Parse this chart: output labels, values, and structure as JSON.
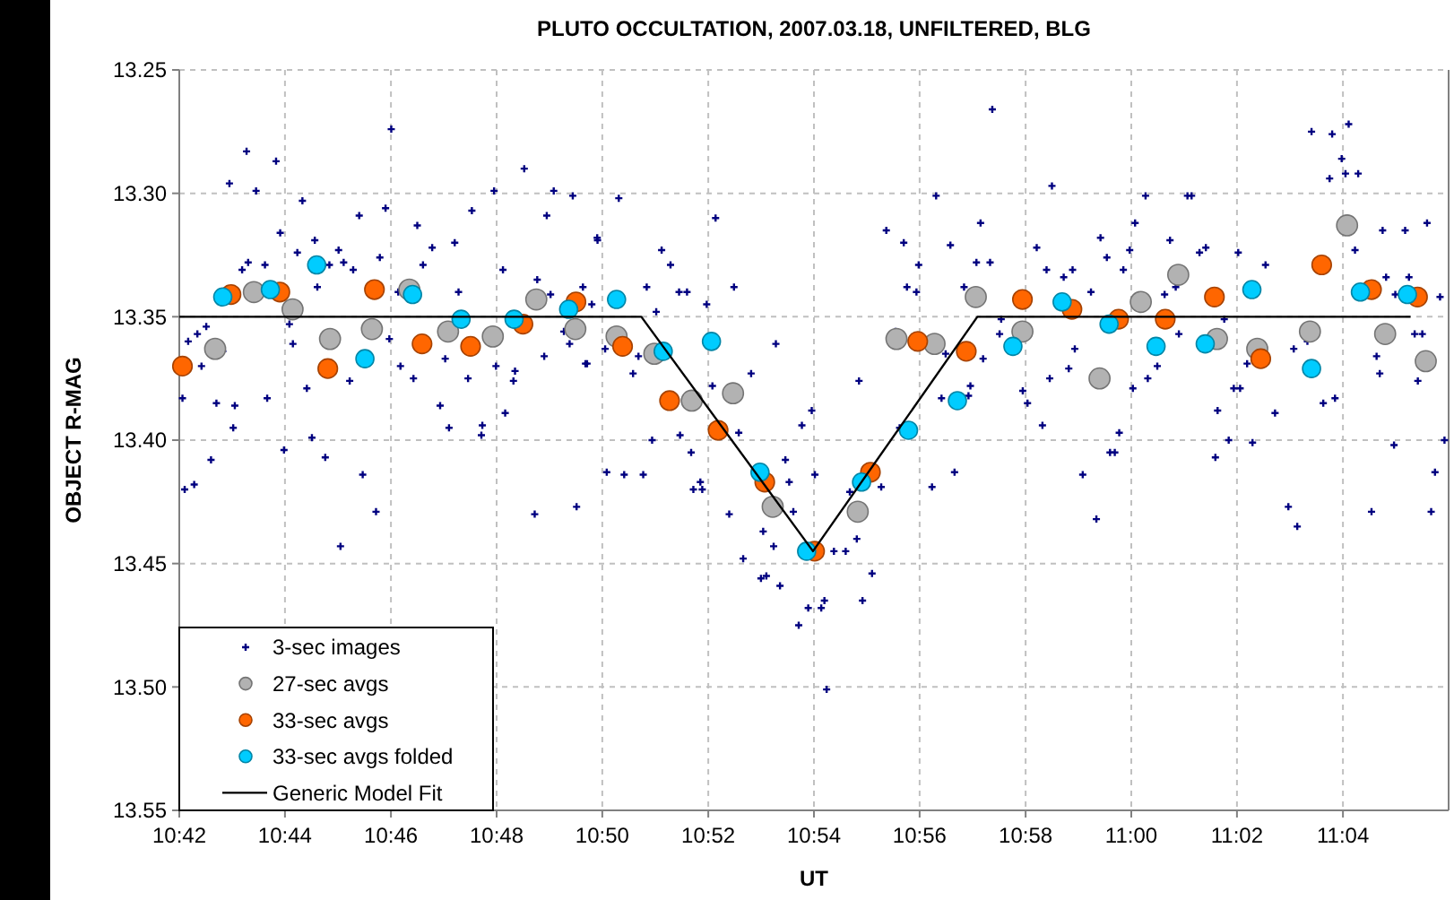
{
  "chart_data": {
    "type": "scatter",
    "title": "PLUTO OCCULTATION, 2007.03.18, UNFILTERED, BLG",
    "xlabel": "UT",
    "ylabel": "OBJECT R-MAG",
    "xlim": [
      10.7,
      11.1
    ],
    "ylim": [
      13.55,
      13.25
    ],
    "xticks": [
      {
        "value": 10.7,
        "label": "10:42"
      },
      {
        "value": 10.7333,
        "label": "10:44"
      },
      {
        "value": 10.7667,
        "label": "10:46"
      },
      {
        "value": 10.8,
        "label": "10:48"
      },
      {
        "value": 10.8333,
        "label": "10:50"
      },
      {
        "value": 10.8667,
        "label": "10:52"
      },
      {
        "value": 10.9,
        "label": "10:54"
      },
      {
        "value": 10.9333,
        "label": "10:56"
      },
      {
        "value": 10.9667,
        "label": "10:58"
      },
      {
        "value": 11,
        "label": "11:00"
      },
      {
        "value": 11.0333,
        "label": "11:02"
      },
      {
        "value": 11.0667,
        "label": "11:04"
      }
    ],
    "yticks": [
      {
        "value": 13.25,
        "label": "13.25"
      },
      {
        "value": 13.3,
        "label": "13.30"
      },
      {
        "value": 13.35,
        "label": "13.35"
      },
      {
        "value": 13.4,
        "label": "13.40"
      },
      {
        "value": 13.45,
        "label": "13.45"
      },
      {
        "value": 13.5,
        "label": "13.50"
      },
      {
        "value": 13.55,
        "label": "13.55"
      }
    ],
    "grid": true,
    "legend": "bottom left",
    "series": [
      {
        "name": "3-sec images",
        "marker": "cross",
        "color": "#000080",
        "x": [
          10.7668,
          10.7212,
          10.7305,
          10.7158,
          10.7242,
          10.7388,
          10.7567,
          10.765,
          10.7318,
          10.7427,
          10.7372,
          10.7502,
          10.7518,
          10.7548,
          10.7217,
          10.727,
          10.7198,
          10.7435,
          10.7473,
          10.7632,
          10.775,
          10.7797,
          10.7868,
          10.7922,
          10.7768,
          10.788,
          10.769,
          10.7992,
          10.8087,
          10.818,
          10.8158,
          10.824,
          10.8317,
          10.802,
          10.8128,
          10.817,
          10.8272,
          10.7085,
          10.7057,
          10.7028,
          10.7137,
          10.707,
          10.701,
          10.7117,
          10.7175,
          10.717,
          10.7277,
          10.7347,
          10.7358,
          10.7402,
          10.7418,
          10.733,
          10.746,
          10.7537,
          10.7578,
          10.762,
          10.7508,
          10.7662,
          10.7697,
          10.7738,
          10.7822,
          10.7838,
          10.785,
          10.791,
          10.7955,
          10.7952,
          10.7998,
          10.8027,
          10.8053,
          10.8058,
          10.812,
          10.815,
          10.8212,
          10.823,
          10.8252,
          10.8285,
          10.83,
          10.7017,
          10.7047,
          10.71,
          10.8385,
          10.8318,
          10.852,
          10.8548,
          10.869,
          10.8473,
          10.8575,
          10.86,
          10.8748,
          10.8662,
          10.8503,
          10.828,
          10.8342,
          10.843,
          10.8447,
          10.849,
          10.8347,
          10.8402,
          10.8462,
          10.8578,
          10.8613,
          10.8642,
          10.8648,
          10.862,
          10.868,
          10.8763,
          10.8802,
          10.888,
          10.8733,
          10.8777,
          10.884,
          10.8833,
          10.885,
          10.8893,
          10.8873,
          10.891,
          10.8922,
          10.8935,
          10.8962,
          10.8993,
          10.9003,
          10.8952,
          10.8982,
          10.9023,
          10.9033,
          10.904,
          10.9063,
          10.91,
          10.9113,
          10.9135,
          10.9142,
          10.9153,
          10.9183,
          10.9212,
          10.9228,
          10.9283,
          10.927,
          10.9257,
          10.9293,
          10.9323,
          10.933,
          10.9385,
          10.943,
          10.9525,
          10.9512,
          10.9555,
          10.9473,
          10.9363,
          10.9415,
          10.9402,
          10.9487,
          10.9493,
          10.9443,
          10.9372,
          10.9585,
          10.9562,
          10.975,
          11.0045,
          11.0177,
          11.019,
          11.0568,
          11.0633,
          11.0685,
          11.0663,
          11.0625,
          11.0675,
          11.0715,
          10.9702,
          10.9903,
          10.9923,
          10.9995,
          11.0012,
          10.9975,
          11.0122,
          11.0215,
          11.0235,
          11.0337,
          11.0423,
          10.9733,
          10.9787,
          10.9815,
          10.9873,
          11.014,
          11.0105,
          11.0705,
          11.0792,
          11.0863,
          11.0932,
          11.0803,
          11.0875,
          11.0973,
          11.0832,
          10.959,
          10.9533,
          10.9658,
          10.9673,
          10.972,
          10.9743,
          10.9803,
          10.9822,
          10.9847,
          10.989,
          10.9933,
          10.9948,
          10.9962,
          11.0005,
          11.0052,
          11.0082,
          11.015,
          11.0293,
          11.0272,
          11.0265,
          11.0307,
          11.0323,
          11.0343,
          11.0365,
          11.0382,
          11.0453,
          11.0512,
          11.0495,
          11.0523,
          11.0555,
          11.0605,
          11.0642,
          11.0773,
          11.0783,
          11.0828,
          11.0757,
          11.0893,
          11.0917,
          11.0903,
          11.0957,
          11.0945,
          11.0987
        ],
        "values": [
          13.274,
          13.283,
          13.287,
          13.296,
          13.299,
          13.303,
          13.309,
          13.306,
          13.316,
          13.319,
          13.324,
          13.323,
          13.328,
          13.331,
          13.328,
          13.329,
          13.331,
          13.338,
          13.329,
          13.326,
          13.313,
          13.322,
          13.32,
          13.307,
          13.329,
          13.34,
          13.34,
          13.299,
          13.29,
          13.299,
          13.309,
          13.301,
          13.318,
          13.331,
          13.335,
          13.341,
          13.338,
          13.354,
          13.357,
          13.36,
          13.364,
          13.37,
          13.383,
          13.385,
          13.386,
          13.395,
          13.383,
          13.353,
          13.361,
          13.379,
          13.399,
          13.404,
          13.407,
          13.376,
          13.414,
          13.429,
          13.443,
          13.359,
          13.37,
          13.375,
          13.386,
          13.367,
          13.395,
          13.375,
          13.394,
          13.398,
          13.37,
          13.389,
          13.376,
          13.372,
          13.43,
          13.366,
          13.356,
          13.361,
          13.427,
          13.369,
          13.345,
          13.42,
          13.418,
          13.408,
          13.302,
          13.319,
          13.323,
          13.329,
          13.31,
          13.338,
          13.34,
          13.34,
          13.338,
          13.345,
          13.348,
          13.369,
          13.363,
          13.373,
          13.366,
          13.4,
          13.413,
          13.414,
          13.414,
          13.398,
          13.405,
          13.417,
          13.42,
          13.42,
          13.378,
          13.397,
          13.373,
          13.361,
          13.43,
          13.448,
          13.437,
          13.456,
          13.455,
          13.459,
          13.443,
          13.408,
          13.417,
          13.429,
          13.394,
          13.388,
          13.414,
          13.475,
          13.468,
          13.468,
          13.465,
          13.501,
          13.445,
          13.445,
          13.421,
          13.44,
          13.376,
          13.465,
          13.454,
          13.419,
          13.315,
          13.32,
          13.395,
          13.356,
          13.338,
          13.34,
          13.329,
          13.301,
          13.321,
          13.312,
          13.328,
          13.328,
          13.338,
          13.363,
          13.365,
          13.383,
          13.382,
          13.378,
          13.413,
          13.419,
          13.357,
          13.266,
          13.297,
          13.301,
          13.301,
          13.301,
          13.275,
          13.276,
          13.272,
          13.286,
          13.294,
          13.292,
          13.292,
          13.322,
          13.318,
          13.326,
          13.323,
          13.312,
          13.331,
          13.319,
          13.324,
          13.322,
          13.324,
          13.329,
          13.331,
          13.334,
          13.331,
          13.34,
          13.338,
          13.341,
          13.323,
          13.315,
          13.315,
          13.312,
          13.334,
          13.334,
          13.342,
          13.341,
          13.351,
          13.367,
          13.38,
          13.385,
          13.394,
          13.375,
          13.371,
          13.363,
          13.414,
          13.432,
          13.405,
          13.405,
          13.397,
          13.379,
          13.375,
          13.37,
          13.357,
          13.351,
          13.388,
          13.407,
          13.4,
          13.379,
          13.379,
          13.369,
          13.401,
          13.389,
          13.363,
          13.427,
          13.435,
          13.36,
          13.385,
          13.383,
          13.366,
          13.373,
          13.402,
          13.429,
          13.357,
          13.357,
          13.376,
          13.413,
          13.429,
          13.4
        ]
      },
      {
        "name": "27-sec avgs",
        "marker": "circle",
        "color": "#b2b2b2",
        "x": [
          10.7113,
          10.7235,
          10.7357,
          10.7475,
          10.7607,
          10.7725,
          10.7847,
          10.7988,
          10.8125,
          10.8248,
          10.8378,
          10.8497,
          10.8615,
          10.8745,
          10.887,
          10.9138,
          10.926,
          10.938,
          10.951,
          10.9657,
          10.99,
          11.003,
          11.0148,
          11.027,
          11.0397,
          11.0563,
          11.068,
          11.08,
          11.0928
        ],
        "values": [
          13.363,
          13.34,
          13.347,
          13.359,
          13.355,
          13.339,
          13.356,
          13.358,
          13.343,
          13.355,
          13.358,
          13.365,
          13.384,
          13.381,
          13.427,
          13.429,
          13.359,
          13.361,
          13.342,
          13.356,
          13.375,
          13.344,
          13.333,
          13.359,
          13.363,
          13.356,
          13.313,
          13.357,
          13.368
        ]
      },
      {
        "name": "33-sec avgs",
        "marker": "circle",
        "color": "#ff6600",
        "x": [
          10.701,
          10.7163,
          10.7317,
          10.7468,
          10.7615,
          10.7765,
          10.7918,
          10.8083,
          10.825,
          10.8397,
          10.8545,
          10.8698,
          10.8845,
          10.9002,
          10.9178,
          10.9327,
          10.948,
          10.9657,
          10.9813,
          10.996,
          11.0107,
          11.0262,
          11.0408,
          11.06,
          11.0757,
          11.0902
        ],
        "values": [
          13.37,
          13.341,
          13.34,
          13.371,
          13.339,
          13.361,
          13.362,
          13.353,
          13.344,
          13.362,
          13.384,
          13.396,
          13.417,
          13.445,
          13.413,
          13.36,
          13.364,
          13.343,
          13.347,
          13.351,
          13.351,
          13.342,
          13.367,
          13.329,
          13.339,
          13.342
        ]
      },
      {
        "name": "33-sec avgs folded",
        "marker": "circle",
        "color": "#00ccff",
        "x": [
          10.7137,
          10.7287,
          10.7433,
          10.7585,
          10.7735,
          10.7888,
          10.8055,
          10.8227,
          10.8378,
          10.8525,
          10.8677,
          10.883,
          10.8977,
          10.915,
          10.9298,
          10.9452,
          10.9627,
          10.9782,
          10.993,
          11.0078,
          11.0233,
          11.038,
          11.0568,
          11.0722,
          11.087
        ],
        "values": [
          13.342,
          13.339,
          13.329,
          13.367,
          13.341,
          13.351,
          13.351,
          13.347,
          13.343,
          13.364,
          13.36,
          13.413,
          13.445,
          13.417,
          13.396,
          13.384,
          13.362,
          13.344,
          13.353,
          13.362,
          13.361,
          13.339,
          13.371,
          13.34,
          13.341
        ]
      },
      {
        "name": "Generic Model Fit",
        "type": "line",
        "marker": "none",
        "line_style": "solid",
        "color": "#000000",
        "x": [
          10.7,
          10.8456,
          10.8997,
          10.9515,
          11.088
        ],
        "values": [
          13.35,
          13.35,
          13.445,
          13.35,
          13.35
        ]
      }
    ]
  }
}
